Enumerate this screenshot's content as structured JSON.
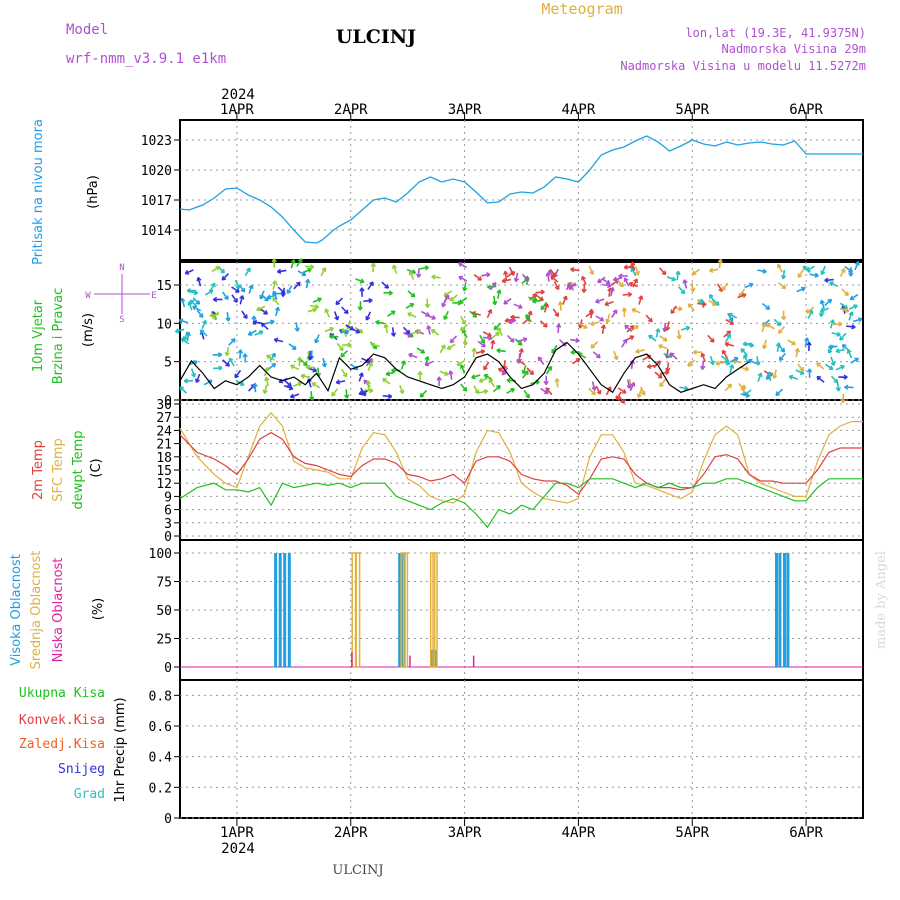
{
  "header": {
    "model_label": "Model",
    "model_name": "wrf-nmm_v3.9.1 e1km",
    "station": "ULCINJ",
    "product": "Meteogram",
    "coords": "lon,lat (19.3E, 41.9375N)",
    "elevation": "Nadmorska Visina 29m",
    "model_elevation": "Nadmorska Visina u modelu 11.5272m",
    "footer_station": "ULCINJ",
    "credit": "made by Angel"
  },
  "colors": {
    "purple": "#b050d0",
    "orange": "#e0b040",
    "cyan": "#20a0e0",
    "green": "#20c020",
    "red": "#e04040",
    "blue": "#3030e0",
    "magenta": "#e020a0",
    "teal": "#30c0c0",
    "orange_red": "#f06020"
  },
  "time_axis": {
    "year": "2024",
    "labels": [
      "1APR",
      "2APR",
      "3APR",
      "4APR",
      "5APR",
      "6APR"
    ]
  },
  "panels": {
    "pressure": {
      "ylabel": "Pritisak na nivou mora",
      "unit": "(hPa)",
      "ticks": [
        "1014",
        "1017",
        "1020",
        "1023"
      ]
    },
    "wind": {
      "ylabel1": "10m Vjetar",
      "ylabel2": "Brzina i Pravac",
      "unit": "(m/s)",
      "ticks": [
        "0",
        "5",
        "10",
        "15"
      ],
      "compass": {
        "n": "N",
        "s": "S",
        "w": "W",
        "e": "E"
      }
    },
    "temp": {
      "ylabel_2m": "2m Temp",
      "ylabel_sfc": "SFC Temp",
      "ylabel_dew": "dewpt Temp",
      "unit": "(C)",
      "ticks": [
        "0",
        "3",
        "6",
        "9",
        "12",
        "15",
        "18",
        "21",
        "24",
        "27",
        "30"
      ]
    },
    "cloud": {
      "ylabel_high": "Visoka Oblacnost",
      "ylabel_mid": "Srednja Oblacnost",
      "ylabel_low": "Niska Oblacnost",
      "unit": "(%)",
      "ticks": [
        "0",
        "25",
        "50",
        "75",
        "100"
      ]
    },
    "precip": {
      "ylabel": "1hr Precip (mm)",
      "ticks": [
        "0",
        "0.2",
        "0.4",
        "0.6",
        "0.8"
      ],
      "legend": [
        "Ukupna Kisa",
        "Konvek.Kisa",
        "Zaledj.Kisa",
        "Snijeg",
        "Grad"
      ]
    }
  },
  "chart_data": [
    {
      "type": "line",
      "x_unit": "days from 1APR 00UTC",
      "xlim": [
        -0.5,
        5.5
      ],
      "ylim": [
        1011,
        1025
      ],
      "series": [
        {
          "name": "",
          "color": "#20a0e0",
          "x": [
            -0.5,
            -0.42,
            -0.3,
            -0.2,
            -0.1,
            0,
            0.1,
            0.2,
            0.3,
            0.4,
            0.5,
            0.6,
            0.7,
            0.75,
            0.8,
            0.85,
            0.9,
            1.0,
            1.1,
            1.2,
            1.3,
            1.4,
            1.5,
            1.6,
            1.7,
            1.8,
            1.9,
            2.0,
            2.1,
            2.2,
            2.3,
            2.4,
            2.5,
            2.6,
            2.7,
            2.8,
            2.9,
            3.0,
            3.1,
            3.2,
            3.3,
            3.4,
            3.5,
            3.6,
            3.7,
            3.8,
            3.9,
            4.0,
            4.1,
            4.2,
            4.3,
            4.4,
            4.5,
            4.6,
            4.7,
            4.8,
            4.9,
            5.0,
            5.1,
            5.2,
            5.3,
            5.4,
            5.5
          ],
          "y": [
            1016.1,
            1016.0,
            1016.5,
            1017.2,
            1018.1,
            1018.2,
            1017.5,
            1017.0,
            1016.3,
            1015.3,
            1014.0,
            1012.8,
            1012.7,
            1013.0,
            1013.5,
            1014.0,
            1014.4,
            1015.0,
            1016.0,
            1017.0,
            1017.2,
            1016.8,
            1017.7,
            1018.8,
            1019.3,
            1018.8,
            1019.1,
            1018.8,
            1017.8,
            1016.7,
            1016.8,
            1017.6,
            1017.8,
            1017.7,
            1018.3,
            1019.3,
            1019.1,
            1018.8,
            1020.0,
            1021.5,
            1022.0,
            1022.3,
            1022.9,
            1023.4,
            1022.8,
            1021.9,
            1022.4,
            1023.0,
            1022.6,
            1022.4,
            1022.8,
            1022.5,
            1022.7,
            1022.8,
            1022.6,
            1022.5,
            1022.9,
            1021.6,
            1021.6,
            1021.6,
            1021.6,
            1021.6,
            1021.6
          ]
        }
      ]
    },
    {
      "type": "line",
      "x_unit": "days from 1APR 00UTC",
      "xlim": [
        -0.5,
        5.5
      ],
      "ylim": [
        0,
        18
      ],
      "series": [
        {
          "name": "",
          "color": "#000000",
          "x": [
            -0.5,
            -0.4,
            -0.3,
            -0.2,
            -0.1,
            0,
            0.1,
            0.2,
            0.3,
            0.4,
            0.5,
            0.6,
            0.7,
            0.8,
            0.9,
            1.0,
            1.1,
            1.2,
            1.3,
            1.4,
            1.5,
            1.6,
            1.7,
            1.8,
            1.9,
            2.0,
            2.1,
            2.2,
            2.3,
            2.4,
            2.5,
            2.6,
            2.7,
            2.8,
            2.9,
            3.0,
            3.1,
            3.2,
            3.3,
            3.4,
            3.5,
            3.6,
            3.7,
            3.8,
            3.9,
            4.0,
            4.1,
            4.2,
            4.3,
            4.4,
            4.5
          ],
          "y": [
            2.5,
            5.1,
            3.5,
            1.5,
            2.5,
            2.0,
            3.0,
            4.5,
            3.0,
            2.5,
            3.0,
            2.0,
            3.5,
            1.2,
            5.5,
            4.0,
            4.5,
            6.0,
            5.5,
            4.0,
            3.0,
            2.5,
            2.0,
            1.5,
            2.0,
            3.0,
            5.5,
            6.0,
            5.0,
            3.0,
            1.5,
            2.0,
            3.5,
            6.5,
            7.5,
            6.0,
            4.0,
            2.0,
            1.0,
            3.5,
            5.5,
            6.0,
            4.5,
            2.0,
            1.0,
            1.5,
            2.0,
            1.5,
            3.0,
            4.0,
            5.0
          ]
        }
      ]
    },
    {
      "type": "line",
      "x_unit": "days from 1APR 00UTC",
      "xlim": [
        -0.5,
        5.5
      ],
      "ylim": [
        0,
        30
      ],
      "series": [
        {
          "name": "",
          "color": "#e04040",
          "x": [
            -0.5,
            -0.35,
            -0.2,
            -0.1,
            0,
            0.1,
            0.2,
            0.3,
            0.4,
            0.5,
            0.6,
            0.7,
            0.8,
            0.9,
            1.0,
            1.1,
            1.2,
            1.3,
            1.4,
            1.5,
            1.6,
            1.7,
            1.8,
            1.9,
            2.0,
            2.1,
            2.2,
            2.3,
            2.4,
            2.5,
            2.6,
            2.7,
            2.8,
            2.9,
            3.0,
            3.1,
            3.2,
            3.3,
            3.4,
            3.5,
            3.6,
            3.7,
            3.8,
            3.9,
            4.0,
            4.1,
            4.2,
            4.3,
            4.4,
            4.5,
            4.6,
            4.7,
            4.8,
            4.9,
            5.0,
            5.1,
            5.2,
            5.3,
            5.4,
            5.5
          ],
          "y": [
            23,
            19,
            17.5,
            16,
            14,
            17.5,
            22,
            23.5,
            22,
            18,
            16.5,
            16,
            15,
            14,
            13.5,
            16,
            17.5,
            17.5,
            16.5,
            14,
            13.5,
            12.5,
            13,
            14,
            12,
            17,
            18,
            18,
            17,
            14,
            13,
            12.5,
            12.5,
            11.5,
            9.5,
            13,
            17.5,
            18,
            17.5,
            14,
            12,
            11,
            11,
            10.5,
            11,
            14,
            18,
            18.5,
            17.5,
            14,
            12.5,
            12.5,
            12,
            12,
            12,
            15,
            19,
            20,
            20,
            20
          ]
        },
        {
          "name": "",
          "color": "#e0b040",
          "x": [
            -0.5,
            -0.35,
            -0.2,
            -0.1,
            0,
            0.1,
            0.2,
            0.3,
            0.4,
            0.5,
            0.6,
            0.7,
            0.8,
            0.9,
            1.0,
            1.1,
            1.2,
            1.3,
            1.4,
            1.5,
            1.6,
            1.7,
            1.8,
            1.9,
            2.0,
            2.1,
            2.2,
            2.3,
            2.4,
            2.5,
            2.6,
            2.7,
            2.8,
            2.9,
            3.0,
            3.1,
            3.2,
            3.3,
            3.4,
            3.5,
            3.6,
            3.7,
            3.8,
            3.9,
            4.0,
            4.1,
            4.2,
            4.3,
            4.4,
            4.5,
            4.6,
            4.7,
            4.8,
            4.9,
            5.0,
            5.1,
            5.2,
            5.3,
            5.4,
            5.5
          ],
          "y": [
            24.5,
            18,
            14,
            12,
            11,
            18,
            25,
            28,
            25,
            17,
            15.5,
            15,
            14.5,
            13,
            13,
            20,
            23.5,
            23,
            19,
            13,
            11.5,
            9,
            8,
            7.5,
            9.5,
            19,
            24,
            23.5,
            19,
            12,
            10,
            8.5,
            8,
            7.5,
            8.5,
            18,
            23,
            23,
            19,
            12,
            11.5,
            10.5,
            9.5,
            8.5,
            10,
            17,
            23,
            25,
            23,
            14,
            12,
            11,
            10,
            9,
            9,
            17,
            23,
            25,
            26,
            26
          ]
        },
        {
          "name": "",
          "color": "#20c020",
          "x": [
            -0.5,
            -0.35,
            -0.2,
            -0.1,
            0,
            0.1,
            0.2,
            0.3,
            0.4,
            0.5,
            0.6,
            0.7,
            0.8,
            0.9,
            1.0,
            1.1,
            1.2,
            1.3,
            1.4,
            1.5,
            1.6,
            1.7,
            1.8,
            1.9,
            2.0,
            2.1,
            2.2,
            2.3,
            2.4,
            2.5,
            2.6,
            2.7,
            2.8,
            2.9,
            3.0,
            3.1,
            3.2,
            3.3,
            3.4,
            3.5,
            3.6,
            3.7,
            3.8,
            3.9,
            4.0,
            4.1,
            4.2,
            4.3,
            4.4,
            4.5,
            4.6,
            4.7,
            4.8,
            4.9,
            5.0,
            5.1,
            5.2,
            5.3,
            5.4,
            5.5
          ],
          "y": [
            8.5,
            11,
            12,
            10.5,
            10.5,
            10,
            11,
            7,
            12,
            11,
            11.5,
            12,
            11.5,
            12,
            11,
            12,
            12,
            12,
            9,
            8,
            7,
            6,
            7.5,
            8.5,
            7.5,
            5,
            2,
            6,
            5,
            7,
            6,
            9,
            12,
            12,
            11,
            13,
            13,
            13,
            12,
            11,
            12,
            11,
            12,
            11,
            11,
            12,
            12,
            13,
            13,
            12,
            11,
            10,
            9,
            8,
            8,
            11,
            13,
            13,
            13,
            13
          ]
        }
      ]
    },
    {
      "type": "bar",
      "x_unit": "days from 1APR 00UTC",
      "xlim": [
        -0.5,
        5.5
      ],
      "ylim": [
        0,
        100
      ],
      "series": [
        {
          "name": "",
          "color": "#20a0e0",
          "x": [
            0.34,
            0.38,
            0.42,
            0.46,
            1.43,
            1.46,
            1.72,
            1.74,
            4.74,
            4.77,
            4.81,
            4.84
          ],
          "values": [
            100,
            100,
            100,
            100,
            100,
            100,
            15,
            15,
            100,
            100,
            100,
            100
          ]
        },
        {
          "name": "",
          "color": "#e0b040",
          "x": [
            1.03,
            1.06,
            1.46,
            1.48,
            1.72,
            1.74
          ],
          "values": [
            100,
            100,
            100,
            100,
            100,
            100
          ]
        },
        {
          "name": "",
          "color": "#e020a0",
          "x": [
            1.01,
            1.52,
            2.08
          ],
          "values": [
            13,
            10,
            10
          ]
        }
      ]
    },
    {
      "type": "bar",
      "x_unit": "days from 1APR 00UTC",
      "xlim": [
        -0.5,
        5.5
      ],
      "ylim": [
        0,
        0.9
      ],
      "series": [
        {
          "name": "",
          "color": "#20c020",
          "x": [],
          "values": []
        }
      ]
    }
  ]
}
